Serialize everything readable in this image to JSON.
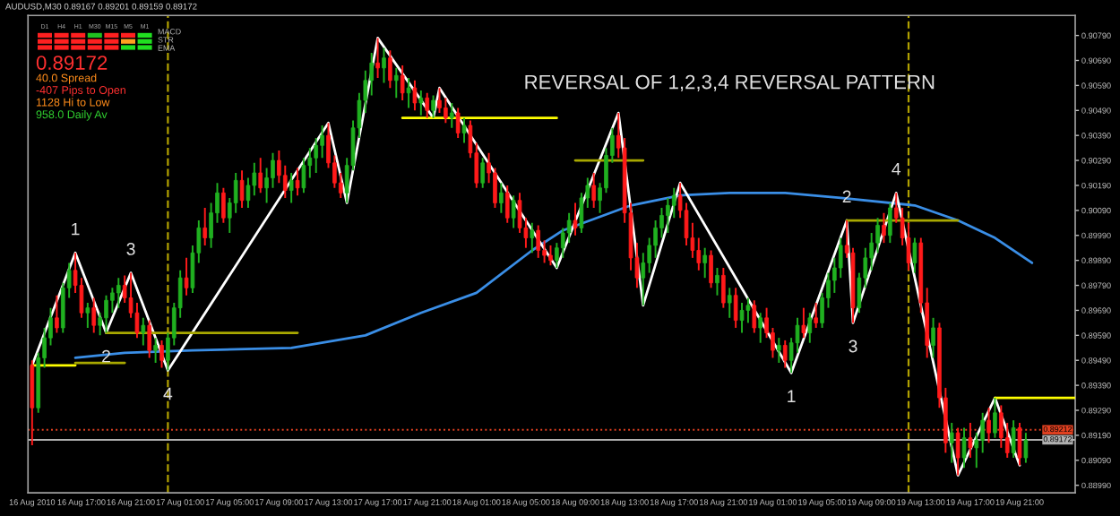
{
  "chart_data": {
    "type": "candlestick",
    "title": "REVERSAL OF 1,2,3,4 REVERSAL PATTERN",
    "x": [
      "2010-08-16T13:00",
      "2010-08-16T13:30",
      "2010-08-16T14:00",
      "2010-08-16T14:30",
      "2010-08-16T15:00",
      "2010-08-16T15:30",
      "2010-08-16T16:00",
      "2010-08-16T16:30",
      "2010-08-16T17:00",
      "2010-08-16T17:30",
      "2010-08-16T18:00",
      "2010-08-16T18:30",
      "2010-08-16T19:00",
      "2010-08-16T19:30",
      "2010-08-16T20:00",
      "2010-08-16T20:30",
      "2010-08-16T21:00",
      "2010-08-16T21:30",
      "2010-08-16T22:00",
      "2010-08-16T22:30",
      "2010-08-16T23:00",
      "2010-08-16T23:30",
      "2010-08-17T00:00",
      "2010-08-17T00:30",
      "2010-08-17T01:00",
      "2010-08-17T01:30",
      "2010-08-17T02:00",
      "2010-08-17T02:30",
      "2010-08-17T03:00",
      "2010-08-17T03:30",
      "2010-08-17T04:00",
      "2010-08-17T04:30",
      "2010-08-17T05:00",
      "2010-08-17T05:30",
      "2010-08-17T06:00",
      "2010-08-17T06:30",
      "2010-08-17T07:00",
      "2010-08-17T07:30",
      "2010-08-17T08:00",
      "2010-08-17T08:30",
      "2010-08-17T09:00",
      "2010-08-17T09:30",
      "2010-08-17T10:00",
      "2010-08-17T10:30",
      "2010-08-17T11:00",
      "2010-08-17T11:30",
      "2010-08-17T12:00",
      "2010-08-17T12:30",
      "2010-08-17T13:00",
      "2010-08-17T13:30",
      "2010-08-17T14:00",
      "2010-08-17T14:30",
      "2010-08-17T15:00",
      "2010-08-17T15:30",
      "2010-08-17T16:00",
      "2010-08-17T16:30",
      "2010-08-17T17:00",
      "2010-08-17T17:30",
      "2010-08-17T18:00",
      "2010-08-17T18:30",
      "2010-08-17T19:00",
      "2010-08-17T19:30",
      "2010-08-17T20:00",
      "2010-08-17T20:30",
      "2010-08-17T21:00",
      "2010-08-17T21:30",
      "2010-08-17T22:00",
      "2010-08-17T22:30",
      "2010-08-17T23:00",
      "2010-08-17T23:30",
      "2010-08-18T00:00",
      "2010-08-18T00:30",
      "2010-08-18T01:00",
      "2010-08-18T01:30",
      "2010-08-18T02:00",
      "2010-08-18T02:30",
      "2010-08-18T03:00",
      "2010-08-18T03:30",
      "2010-08-18T04:00",
      "2010-08-18T04:30",
      "2010-08-18T05:00",
      "2010-08-18T05:30",
      "2010-08-18T06:00",
      "2010-08-18T06:30",
      "2010-08-18T07:00",
      "2010-08-18T07:30",
      "2010-08-18T08:00",
      "2010-08-18T08:30",
      "2010-08-18T09:00",
      "2010-08-18T09:30",
      "2010-08-18T10:00",
      "2010-08-18T10:30",
      "2010-08-18T11:00",
      "2010-08-18T11:30",
      "2010-08-18T12:00",
      "2010-08-18T12:30",
      "2010-08-18T13:00",
      "2010-08-18T13:30",
      "2010-08-18T14:00",
      "2010-08-18T14:30",
      "2010-08-18T15:00",
      "2010-08-18T15:30",
      "2010-08-18T16:00",
      "2010-08-18T16:30",
      "2010-08-18T17:00",
      "2010-08-18T17:30",
      "2010-08-18T18:00",
      "2010-08-18T18:30",
      "2010-08-18T19:00",
      "2010-08-18T19:30",
      "2010-08-18T20:00",
      "2010-08-18T20:30",
      "2010-08-18T21:00",
      "2010-08-18T21:30",
      "2010-08-18T22:00",
      "2010-08-18T22:30",
      "2010-08-18T23:00",
      "2010-08-18T23:30",
      "2010-08-19T00:00",
      "2010-08-19T00:30",
      "2010-08-19T01:00",
      "2010-08-19T01:30",
      "2010-08-19T02:00",
      "2010-08-19T02:30",
      "2010-08-19T03:00",
      "2010-08-19T03:30",
      "2010-08-19T04:00",
      "2010-08-19T04:30",
      "2010-08-19T05:00",
      "2010-08-19T05:30",
      "2010-08-19T06:00",
      "2010-08-19T06:30",
      "2010-08-19T07:00",
      "2010-08-19T07:30",
      "2010-08-19T08:00",
      "2010-08-19T08:30",
      "2010-08-19T09:00",
      "2010-08-19T09:30",
      "2010-08-19T10:00",
      "2010-08-19T10:30",
      "2010-08-19T11:00",
      "2010-08-19T11:30",
      "2010-08-19T12:00",
      "2010-08-19T12:30",
      "2010-08-19T13:00",
      "2010-08-19T13:30",
      "2010-08-19T14:00",
      "2010-08-19T14:30",
      "2010-08-19T15:00",
      "2010-08-19T15:30",
      "2010-08-19T16:00",
      "2010-08-19T16:30",
      "2010-08-19T17:00",
      "2010-08-19T17:30",
      "2010-08-19T18:00",
      "2010-08-19T18:30",
      "2010-08-19T19:00",
      "2010-08-19T19:30",
      "2010-08-19T20:00",
      "2010-08-19T20:30",
      "2010-08-19T21:00",
      "2010-08-19T21:30"
    ],
    "ohlc": [
      [
        0.8947,
        0.8949,
        0.8915,
        0.893
      ],
      [
        0.893,
        0.8952,
        0.8928,
        0.895
      ],
      [
        0.895,
        0.8962,
        0.8946,
        0.8958
      ],
      [
        0.8958,
        0.897,
        0.8955,
        0.8966
      ],
      [
        0.8966,
        0.8975,
        0.896,
        0.8962
      ],
      [
        0.8962,
        0.898,
        0.896,
        0.8978
      ],
      [
        0.8978,
        0.8988,
        0.8974,
        0.8985
      ],
      [
        0.8985,
        0.8992,
        0.8976,
        0.8979
      ],
      [
        0.8979,
        0.8982,
        0.8966,
        0.8968
      ],
      [
        0.8968,
        0.8972,
        0.8962,
        0.897
      ],
      [
        0.897,
        0.8974,
        0.896,
        0.8963
      ],
      [
        0.8963,
        0.8968,
        0.8959,
        0.8966
      ],
      [
        0.8966,
        0.8975,
        0.896,
        0.8973
      ],
      [
        0.8973,
        0.8978,
        0.8968,
        0.8976
      ],
      [
        0.8976,
        0.8982,
        0.897,
        0.8979
      ],
      [
        0.8979,
        0.8983,
        0.8972,
        0.8974
      ],
      [
        0.8974,
        0.8984,
        0.8966,
        0.8968
      ],
      [
        0.8968,
        0.8972,
        0.8958,
        0.896
      ],
      [
        0.896,
        0.8966,
        0.8955,
        0.8963
      ],
      [
        0.8963,
        0.8965,
        0.895,
        0.8953
      ],
      [
        0.8953,
        0.8958,
        0.8948,
        0.8955
      ],
      [
        0.8955,
        0.8957,
        0.8946,
        0.8949
      ],
      [
        0.8949,
        0.896,
        0.8945,
        0.8958
      ],
      [
        0.8958,
        0.8972,
        0.8955,
        0.897
      ],
      [
        0.897,
        0.8985,
        0.8966,
        0.8982
      ],
      [
        0.8982,
        0.899,
        0.8975,
        0.8978
      ],
      [
        0.8978,
        0.8995,
        0.8976,
        0.8992
      ],
      [
        0.8992,
        0.9005,
        0.8988,
        0.9002
      ],
      [
        0.9002,
        0.901,
        0.8995,
        0.8998
      ],
      [
        0.8998,
        0.9012,
        0.8994,
        0.9008
      ],
      [
        0.9008,
        0.902,
        0.9004,
        0.9016
      ],
      [
        0.9016,
        0.9018,
        0.9004,
        0.9006
      ],
      [
        0.9006,
        0.9014,
        0.9,
        0.9012
      ],
      [
        0.9012,
        0.9024,
        0.9008,
        0.9021
      ],
      [
        0.9021,
        0.9025,
        0.901,
        0.9013
      ],
      [
        0.9013,
        0.9022,
        0.901,
        0.9019
      ],
      [
        0.9019,
        0.9028,
        0.9015,
        0.9024
      ],
      [
        0.9024,
        0.903,
        0.9016,
        0.9018
      ],
      [
        0.9018,
        0.9026,
        0.9012,
        0.9022
      ],
      [
        0.9022,
        0.9032,
        0.9018,
        0.9029
      ],
      [
        0.9029,
        0.9033,
        0.902,
        0.9023
      ],
      [
        0.9023,
        0.9027,
        0.9014,
        0.9017
      ],
      [
        0.9017,
        0.9024,
        0.9012,
        0.9021
      ],
      [
        0.9021,
        0.9026,
        0.9015,
        0.9018
      ],
      [
        0.9018,
        0.903,
        0.9016,
        0.9027
      ],
      [
        0.9027,
        0.9034,
        0.9022,
        0.903
      ],
      [
        0.903,
        0.9038,
        0.9024,
        0.9035
      ],
      [
        0.9035,
        0.9043,
        0.903,
        0.9039
      ],
      [
        0.9039,
        0.9044,
        0.9026,
        0.9028
      ],
      [
        0.9028,
        0.9031,
        0.9018,
        0.902
      ],
      [
        0.902,
        0.9024,
        0.9014,
        0.9016
      ],
      [
        0.9016,
        0.903,
        0.9012,
        0.9027
      ],
      [
        0.9027,
        0.9045,
        0.9025,
        0.9042
      ],
      [
        0.9042,
        0.9056,
        0.9038,
        0.9053
      ],
      [
        0.9053,
        0.9065,
        0.9048,
        0.9061
      ],
      [
        0.9061,
        0.9072,
        0.9055,
        0.9068
      ],
      [
        0.9068,
        0.9078,
        0.9062,
        0.9066
      ],
      [
        0.9066,
        0.9074,
        0.906,
        0.907
      ],
      [
        0.907,
        0.9073,
        0.9058,
        0.9061
      ],
      [
        0.9061,
        0.9066,
        0.9054,
        0.9063
      ],
      [
        0.9063,
        0.9067,
        0.9053,
        0.9056
      ],
      [
        0.9056,
        0.9062,
        0.905,
        0.9058
      ],
      [
        0.9058,
        0.9061,
        0.9049,
        0.9052
      ],
      [
        0.9052,
        0.9057,
        0.9047,
        0.9054
      ],
      [
        0.9054,
        0.9056,
        0.9046,
        0.9049
      ],
      [
        0.9049,
        0.9055,
        0.9046,
        0.9053
      ],
      [
        0.9053,
        0.9058,
        0.9048,
        0.905
      ],
      [
        0.905,
        0.9054,
        0.9044,
        0.9046
      ],
      [
        0.9046,
        0.9052,
        0.9042,
        0.9048
      ],
      [
        0.9048,
        0.905,
        0.9038,
        0.904
      ],
      [
        0.904,
        0.9046,
        0.9036,
        0.9043
      ],
      [
        0.9043,
        0.9045,
        0.903,
        0.9032
      ],
      [
        0.9032,
        0.9036,
        0.9018,
        0.902
      ],
      [
        0.902,
        0.903,
        0.9018,
        0.9028
      ],
      [
        0.9028,
        0.9032,
        0.902,
        0.9024
      ],
      [
        0.9024,
        0.9026,
        0.901,
        0.9012
      ],
      [
        0.9012,
        0.902,
        0.9008,
        0.9016
      ],
      [
        0.9016,
        0.9019,
        0.9004,
        0.9006
      ],
      [
        0.9006,
        0.9015,
        0.9002,
        0.9013
      ],
      [
        0.9013,
        0.9016,
        0.9,
        0.9002
      ],
      [
        0.9002,
        0.9006,
        0.8994,
        0.8998
      ],
      [
        0.8998,
        0.9004,
        0.8992,
        0.9001
      ],
      [
        0.9001,
        0.9003,
        0.899,
        0.8993
      ],
      [
        0.8993,
        0.8997,
        0.8988,
        0.8991
      ],
      [
        0.8991,
        0.8995,
        0.8987,
        0.8989
      ],
      [
        0.8989,
        0.8996,
        0.8986,
        0.8994
      ],
      [
        0.8994,
        0.9002,
        0.899,
        0.9
      ],
      [
        0.9,
        0.9008,
        0.8996,
        0.9005
      ],
      [
        0.9005,
        0.9012,
        0.8999,
        0.9002
      ],
      [
        0.9002,
        0.9016,
        0.9,
        0.9014
      ],
      [
        0.9014,
        0.9022,
        0.901,
        0.9019
      ],
      [
        0.9019,
        0.9024,
        0.901,
        0.9013
      ],
      [
        0.9013,
        0.902,
        0.9008,
        0.9018
      ],
      [
        0.9018,
        0.9034,
        0.9016,
        0.9031
      ],
      [
        0.9031,
        0.9042,
        0.9028,
        0.9039
      ],
      [
        0.9039,
        0.9048,
        0.903,
        0.9034
      ],
      [
        0.9034,
        0.9038,
        0.9004,
        0.9008
      ],
      [
        0.9008,
        0.9012,
        0.8985,
        0.899
      ],
      [
        0.899,
        0.8996,
        0.8978,
        0.8982
      ],
      [
        0.8982,
        0.8992,
        0.8971,
        0.8988
      ],
      [
        0.8988,
        0.8998,
        0.8984,
        0.8995
      ],
      [
        0.8995,
        0.9005,
        0.899,
        0.9002
      ],
      [
        0.9002,
        0.901,
        0.8998,
        0.9007
      ],
      [
        0.9007,
        0.9014,
        0.9,
        0.9011
      ],
      [
        0.9011,
        0.9018,
        0.9006,
        0.9015
      ],
      [
        0.9015,
        0.902,
        0.9006,
        0.9009
      ],
      [
        0.9009,
        0.9012,
        0.8995,
        0.8998
      ],
      [
        0.8998,
        0.9004,
        0.899,
        0.8993
      ],
      [
        0.8993,
        0.8998,
        0.8985,
        0.8988
      ],
      [
        0.8988,
        0.8994,
        0.8982,
        0.8991
      ],
      [
        0.8991,
        0.8993,
        0.8978,
        0.898
      ],
      [
        0.898,
        0.8986,
        0.8975,
        0.8983
      ],
      [
        0.8983,
        0.8986,
        0.897,
        0.8972
      ],
      [
        0.8972,
        0.8978,
        0.8966,
        0.8975
      ],
      [
        0.8975,
        0.8978,
        0.8962,
        0.8965
      ],
      [
        0.8965,
        0.8972,
        0.896,
        0.8969
      ],
      [
        0.8969,
        0.8974,
        0.8964,
        0.8971
      ],
      [
        0.8971,
        0.8973,
        0.896,
        0.8962
      ],
      [
        0.8962,
        0.8968,
        0.8956,
        0.8966
      ],
      [
        0.8966,
        0.897,
        0.8958,
        0.896
      ],
      [
        0.896,
        0.8962,
        0.895,
        0.8953
      ],
      [
        0.8953,
        0.8958,
        0.8948,
        0.8955
      ],
      [
        0.8955,
        0.8957,
        0.8946,
        0.8949
      ],
      [
        0.8949,
        0.8958,
        0.8944,
        0.8956
      ],
      [
        0.8956,
        0.8966,
        0.8952,
        0.8963
      ],
      [
        0.8963,
        0.897,
        0.8958,
        0.896
      ],
      [
        0.896,
        0.8968,
        0.8956,
        0.8966
      ],
      [
        0.8966,
        0.8972,
        0.8962,
        0.8964
      ],
      [
        0.8964,
        0.8976,
        0.8962,
        0.8974
      ],
      [
        0.8974,
        0.8984,
        0.897,
        0.8981
      ],
      [
        0.8981,
        0.899,
        0.8976,
        0.8986
      ],
      [
        0.8986,
        0.8998,
        0.8982,
        0.8995
      ],
      [
        0.8995,
        0.9005,
        0.899,
        0.8992
      ],
      [
        0.8992,
        0.8994,
        0.8964,
        0.897
      ],
      [
        0.897,
        0.8984,
        0.8968,
        0.8982
      ],
      [
        0.8982,
        0.8994,
        0.8978,
        0.899
      ],
      [
        0.899,
        0.9,
        0.8985,
        0.8996
      ],
      [
        0.8996,
        0.9006,
        0.8992,
        0.9003
      ],
      [
        0.9003,
        0.9008,
        0.8996,
        0.8999
      ],
      [
        0.8999,
        0.9012,
        0.8996,
        0.901
      ],
      [
        0.901,
        0.9016,
        0.9004,
        0.9006
      ],
      [
        0.9006,
        0.901,
        0.8995,
        0.8998
      ],
      [
        0.8998,
        0.9004,
        0.8985,
        0.8988
      ],
      [
        0.8988,
        0.8998,
        0.8984,
        0.8996
      ],
      [
        0.8996,
        0.8998,
        0.8968,
        0.8972
      ],
      [
        0.8972,
        0.8978,
        0.895,
        0.8955
      ],
      [
        0.8955,
        0.8966,
        0.895,
        0.8962
      ],
      [
        0.8962,
        0.8964,
        0.893,
        0.8934
      ],
      [
        0.8934,
        0.8938,
        0.8912,
        0.8916
      ],
      [
        0.8916,
        0.8924,
        0.8908,
        0.892
      ],
      [
        0.892,
        0.8922,
        0.8903,
        0.891
      ],
      [
        0.891,
        0.8922,
        0.8906,
        0.8918
      ],
      [
        0.8918,
        0.8924,
        0.891,
        0.8914
      ],
      [
        0.8914,
        0.892,
        0.8906,
        0.8917
      ],
      [
        0.8917,
        0.8928,
        0.8912,
        0.8925
      ],
      [
        0.8925,
        0.893,
        0.8916,
        0.892
      ],
      [
        0.892,
        0.8934,
        0.8918,
        0.8928
      ],
      [
        0.8928,
        0.8931,
        0.8914,
        0.8918
      ],
      [
        0.8918,
        0.8924,
        0.891,
        0.8912
      ],
      [
        0.8912,
        0.8925,
        0.891,
        0.8922
      ],
      [
        0.8922,
        0.8924,
        0.8907,
        0.891
      ],
      [
        0.891,
        0.892,
        0.8908,
        0.8917
      ]
    ],
    "series": [
      {
        "type": "line",
        "color": "#3a8ee6",
        "x": [
          "2010-08-16T16:30",
          "2010-08-16T20:30",
          "2010-08-17T02:00",
          "2010-08-17T10:00",
          "2010-08-17T16:00",
          "2010-08-17T20:30",
          "2010-08-18T01:00",
          "2010-08-18T05:30",
          "2010-08-18T08:00",
          "2010-08-18T13:30",
          "2010-08-18T17:30",
          "2010-08-18T21:30",
          "2010-08-19T02:00",
          "2010-08-19T06:30",
          "2010-08-19T12:30",
          "2010-08-19T16:00",
          "2010-08-19T19:00",
          "2010-08-19T22:00"
        ],
        "values": [
          0.895,
          0.8952,
          0.8953,
          0.8954,
          0.8959,
          0.8968,
          0.8976,
          0.8993,
          0.9001,
          0.9011,
          0.9015,
          0.9016,
          0.9016,
          0.9014,
          0.9011,
          0.9005,
          0.8998,
          0.8988
        ]
      },
      {
        "type": "line",
        "color": "#ffffff",
        "x": [
          "2010-08-16T13:00",
          "2010-08-16T16:30",
          "2010-08-16T19:00",
          "2010-08-16T21:00",
          "2010-08-17T00:00",
          "2010-08-17T13:00",
          "2010-08-17T14:30",
          "2010-08-17T17:00",
          "2010-08-17T21:30",
          "2010-08-17T22:00",
          "2010-08-18T07:30",
          "2010-08-18T12:30",
          "2010-08-18T14:30",
          "2010-08-18T17:30",
          "2010-08-19T02:30",
          "2010-08-19T07:00",
          "2010-08-19T07:30",
          "2010-08-19T11:00",
          "2010-08-19T16:00",
          "2010-08-19T19:00",
          "2010-08-19T21:00"
        ],
        "values": [
          0.8947,
          0.8992,
          0.896,
          0.8984,
          0.8945,
          0.9044,
          0.9012,
          0.9078,
          0.9046,
          0.9058,
          0.8986,
          0.9048,
          0.8971,
          0.902,
          0.8944,
          0.9005,
          0.8964,
          0.9016,
          0.8903,
          0.8934,
          0.8907
        ]
      },
      {
        "type": "line",
        "color": "#ffff00",
        "x": [
          "2010-08-16T13:00",
          "2010-08-16T16:30"
        ],
        "values": [
          0.8947,
          0.8947
        ]
      },
      {
        "type": "line",
        "color": "#a8a800",
        "x": [
          "2010-08-16T16:30",
          "2010-08-16T20:30"
        ],
        "values": [
          0.8948,
          0.8948
        ]
      },
      {
        "type": "line",
        "color": "#a8a800",
        "x": [
          "2010-08-16T19:00",
          "2010-08-17T10:30"
        ],
        "values": [
          0.896,
          0.896
        ]
      },
      {
        "type": "line",
        "color": "#ffff00",
        "x": [
          "2010-08-17T19:00",
          "2010-08-18T07:30"
        ],
        "values": [
          0.9046,
          0.9046
        ]
      },
      {
        "type": "line",
        "color": "#a8a800",
        "x": [
          "2010-08-18T09:00",
          "2010-08-18T14:30"
        ],
        "values": [
          0.9029,
          0.9029
        ]
      },
      {
        "type": "line",
        "color": "#a8a800",
        "x": [
          "2010-08-19T07:00",
          "2010-08-19T16:00"
        ],
        "values": [
          0.9005,
          0.9005
        ]
      },
      {
        "type": "line",
        "color": "#ffff00",
        "x": [
          "2010-08-19T19:00",
          "2010-08-20T01:30"
        ],
        "values": [
          0.8934,
          0.8934
        ]
      }
    ],
    "ref_lines": [
      {
        "axis": "x",
        "value": "2010-08-17T00:00",
        "color": "#b0a000",
        "line_style": "dashed"
      },
      {
        "axis": "x",
        "value": "2010-08-19T12:00",
        "color": "#b0a000",
        "line_style": "dashed"
      },
      {
        "axis": "y",
        "value": 0.89212,
        "label": "0.89212",
        "color": "#e04020",
        "line_style": "dotted"
      },
      {
        "axis": "y",
        "value": 0.89172,
        "label": "0.89172",
        "color": "#b0b0b0",
        "line_style": "solid"
      }
    ],
    "annotations": [
      "AUDUSD,M30 0.89167 0.89201 0.89159 0.89172",
      "0.89172",
      "40.0 Spread",
      "-407 Pips to Open",
      "1128 Hi to Low",
      "958.0 Daily Av",
      "D1",
      "H4",
      "H1",
      "M30",
      "M15",
      "M5",
      "M1",
      "MACD",
      "STR",
      "EMA",
      {
        "text": "1",
        "x": "2010-08-16T16:30",
        "y": 0.8992
      },
      {
        "text": "2",
        "x": "2010-08-16T19:00",
        "y": 0.896
      },
      {
        "text": "3",
        "x": "2010-08-16T21:00",
        "y": 0.8984
      },
      {
        "text": "4",
        "x": "2010-08-17T00:00",
        "y": 0.8945
      },
      {
        "text": "1",
        "x": "2010-08-19T02:30",
        "y": 0.8944
      },
      {
        "text": "2",
        "x": "2010-08-19T07:00",
        "y": 0.9005
      },
      {
        "text": "3",
        "x": "2010-08-19T07:30",
        "y": 0.8964
      },
      {
        "text": "4",
        "x": "2010-08-19T11:00",
        "y": 0.9016
      }
    ],
    "xlim": [
      "2010-08-16T12:40",
      "2010-08-20T01:30"
    ],
    "xticks": [
      {
        "value": "2010-08-16T13:00",
        "label": "16 Aug 2010"
      },
      {
        "value": "2010-08-16T17:00",
        "label": "16 Aug 17:00"
      },
      {
        "value": "2010-08-16T21:00",
        "label": "16 Aug 21:00"
      },
      {
        "value": "2010-08-17T01:00",
        "label": "17 Aug 01:00"
      },
      {
        "value": "2010-08-17T05:00",
        "label": "17 Aug 05:00"
      },
      {
        "value": "2010-08-17T09:00",
        "label": "17 Aug 09:00"
      },
      {
        "value": "2010-08-17T13:00",
        "label": "17 Aug 13:00"
      },
      {
        "value": "2010-08-17T17:00",
        "label": "17 Aug 17:00"
      },
      {
        "value": "2010-08-17T21:00",
        "label": "17 Aug 21:00"
      },
      {
        "value": "2010-08-18T01:00",
        "label": "18 Aug 01:00"
      },
      {
        "value": "2010-08-18T05:00",
        "label": "18 Aug 05:00"
      },
      {
        "value": "2010-08-18T09:00",
        "label": "18 Aug 09:00"
      },
      {
        "value": "2010-08-18T13:00",
        "label": "18 Aug 13:00"
      },
      {
        "value": "2010-08-18T17:00",
        "label": "18 Aug 17:00"
      },
      {
        "value": "2010-08-18T21:00",
        "label": "18 Aug 21:00"
      },
      {
        "value": "2010-08-19T01:00",
        "label": "19 Aug 01:00"
      },
      {
        "value": "2010-08-19T05:00",
        "label": "19 Aug 05:00"
      },
      {
        "value": "2010-08-19T09:00",
        "label": "19 Aug 09:00"
      },
      {
        "value": "2010-08-19T13:00",
        "label": "19 Aug 13:00"
      },
      {
        "value": "2010-08-19T17:00",
        "label": "19 Aug 17:00"
      },
      {
        "value": "2010-08-19T21:00",
        "label": "19 Aug 21:00"
      }
    ],
    "ylim": [
      0.8896,
      0.9087
    ],
    "yticks": [
      {
        "value": 0.8899,
        "label": "0.88990"
      },
      {
        "value": 0.8909,
        "label": "0.89090"
      },
      {
        "value": 0.8919,
        "label": "0.89190"
      },
      {
        "value": 0.8929,
        "label": "0.89290"
      },
      {
        "value": 0.8939,
        "label": "0.89390"
      },
      {
        "value": 0.8949,
        "label": "0.89490"
      },
      {
        "value": 0.8959,
        "label": "0.89590"
      },
      {
        "value": 0.8969,
        "label": "0.89690"
      },
      {
        "value": 0.8979,
        "label": "0.89790"
      },
      {
        "value": 0.8989,
        "label": "0.89890"
      },
      {
        "value": 0.8999,
        "label": "0.89990"
      },
      {
        "value": 0.9009,
        "label": "0.90090"
      },
      {
        "value": 0.9019,
        "label": "0.90190"
      },
      {
        "value": 0.9029,
        "label": "0.90290"
      },
      {
        "value": 0.9039,
        "label": "0.90390"
      },
      {
        "value": 0.9049,
        "label": "0.90490"
      },
      {
        "value": 0.9059,
        "label": "0.90590"
      },
      {
        "value": 0.9069,
        "label": "0.90690"
      },
      {
        "value": 0.9079,
        "label": "0.90790"
      }
    ]
  }
}
